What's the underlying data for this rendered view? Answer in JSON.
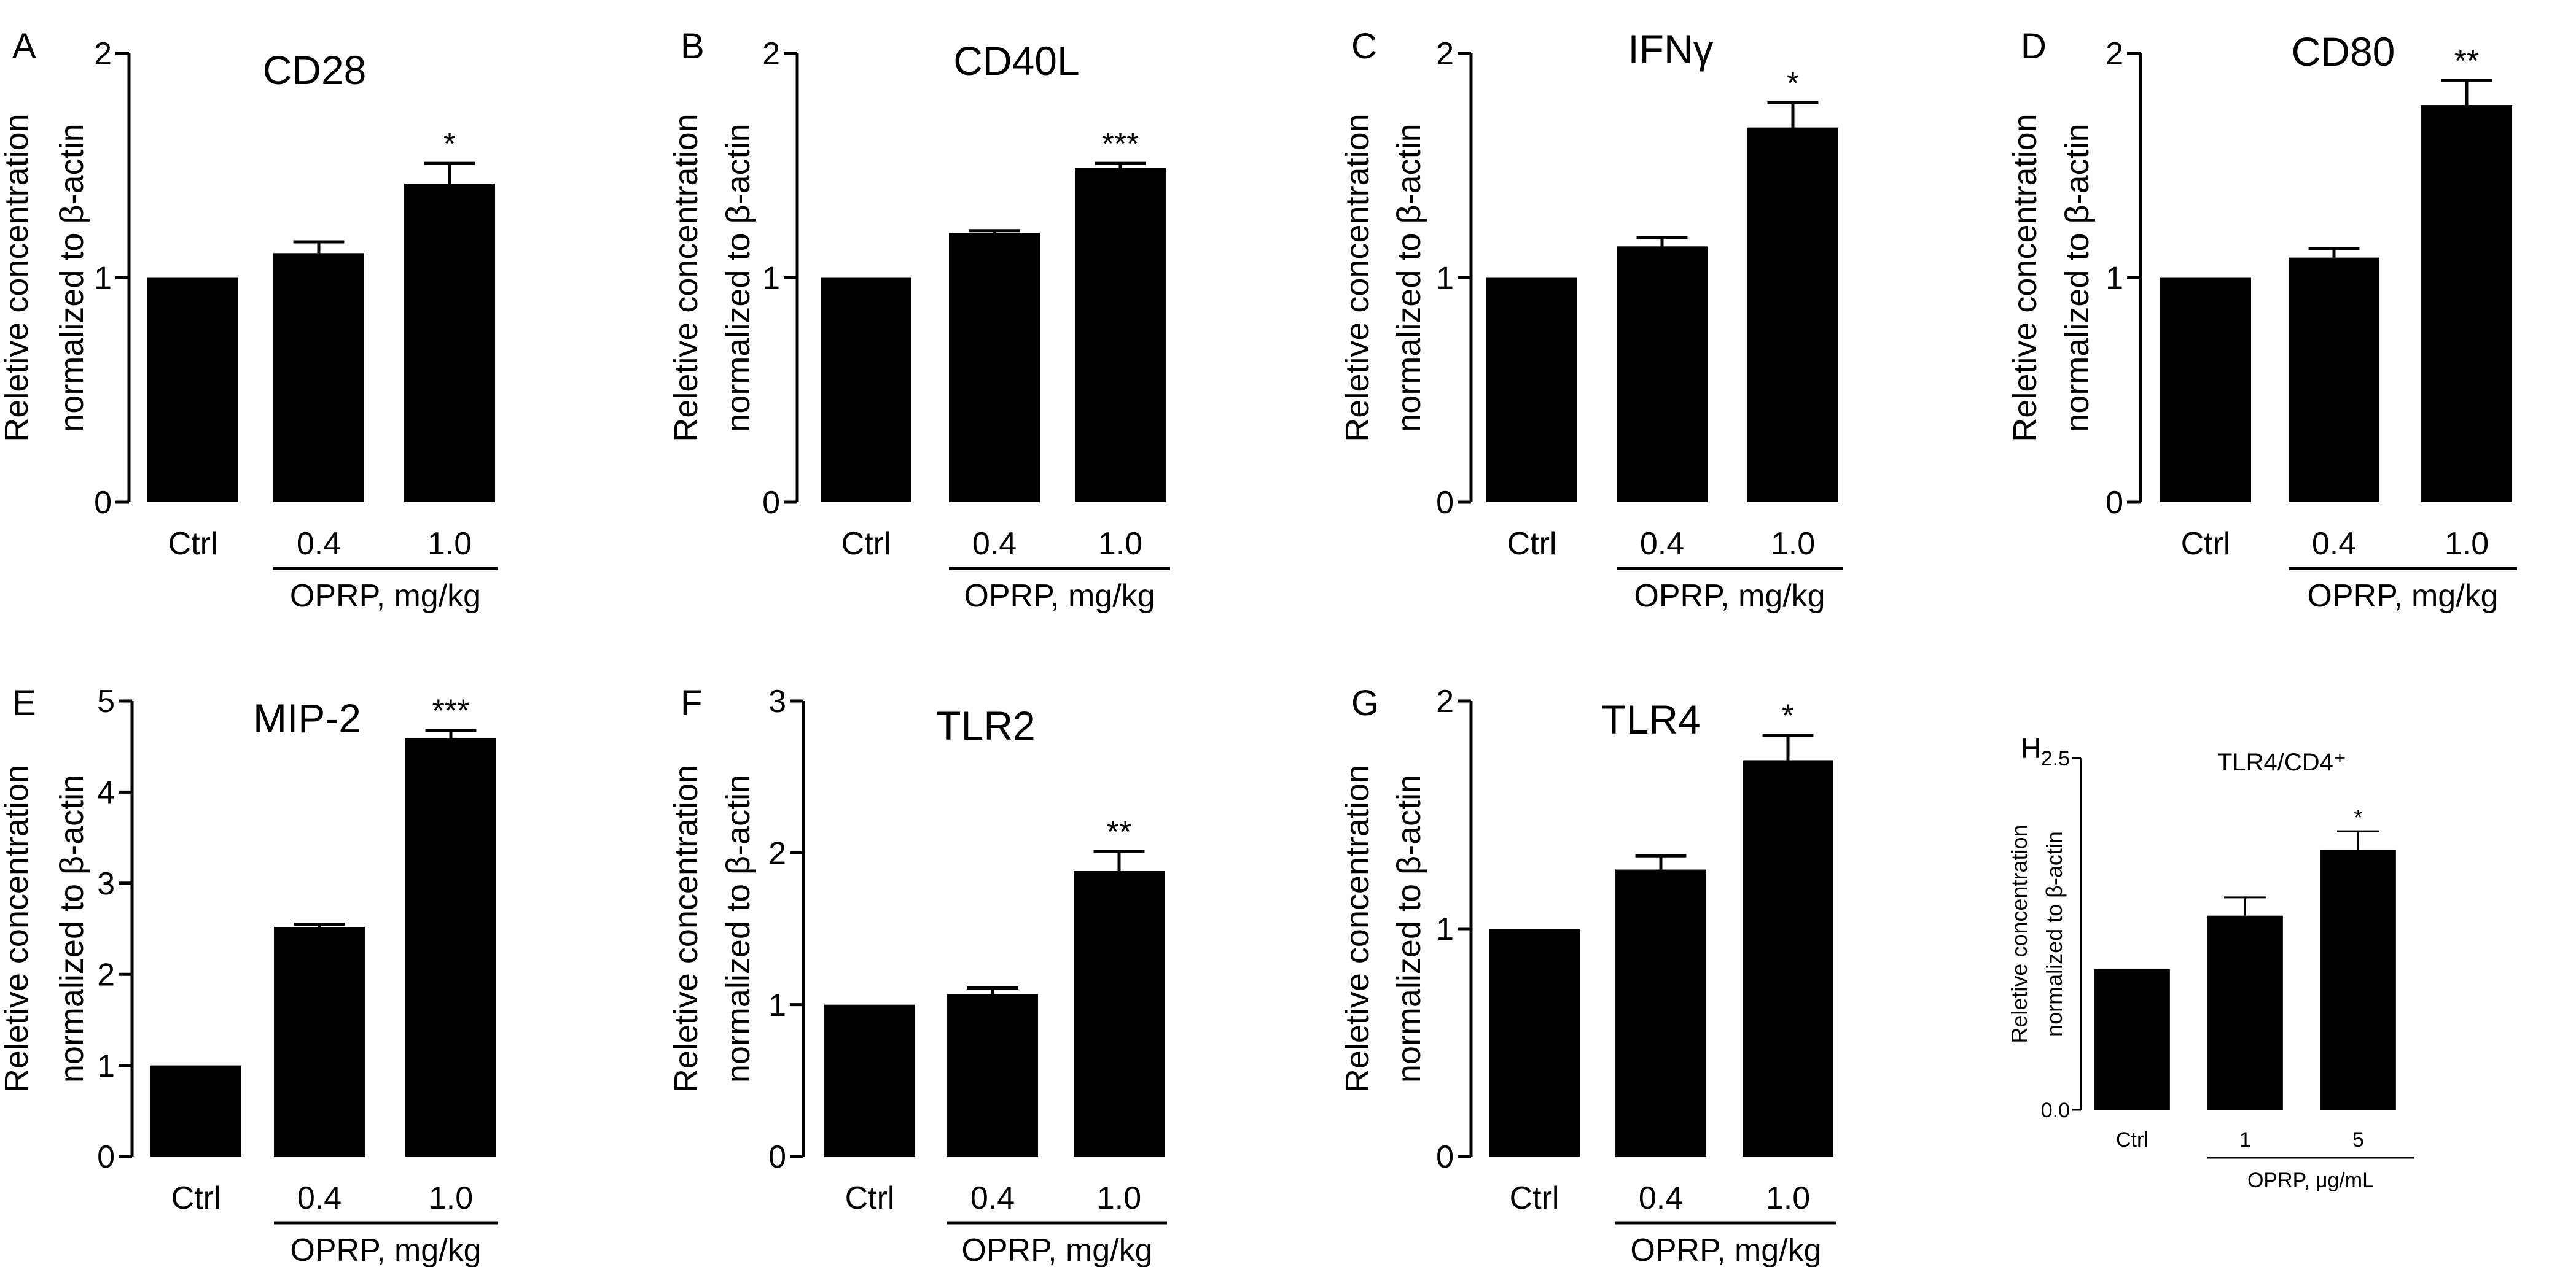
{
  "figure": {
    "colors": {
      "bar": "#000000",
      "axis": "#000000",
      "background": "#ffffff"
    }
  },
  "chart_data": [
    {
      "panel": "A",
      "type": "bar",
      "title": "CD28",
      "ylabel": [
        "Reletive concentration",
        "normalized to β-actin"
      ],
      "categories": [
        "Ctrl",
        "0.4",
        "1.0"
      ],
      "values": [
        1.0,
        1.11,
        1.42
      ],
      "errors": [
        0,
        0.05,
        0.09
      ],
      "significance": [
        "",
        "",
        "*"
      ],
      "ylim": [
        0,
        2
      ],
      "yticks": [
        "0",
        "1",
        "2"
      ],
      "ytick_values": [
        0,
        1,
        2
      ],
      "group_label": "OPRP, mg/kg"
    },
    {
      "panel": "B",
      "type": "bar",
      "title": "CD40L",
      "ylabel": [
        "Reletive concentration",
        "normalized to β-actin"
      ],
      "categories": [
        "Ctrl",
        "0.4",
        "1.0"
      ],
      "values": [
        1.0,
        1.2,
        1.49
      ],
      "errors": [
        0,
        0.01,
        0.02
      ],
      "significance": [
        "",
        "",
        "***"
      ],
      "ylim": [
        0,
        2
      ],
      "yticks": [
        "0",
        "1",
        "2"
      ],
      "ytick_values": [
        0,
        1,
        2
      ],
      "group_label": "OPRP, mg/kg"
    },
    {
      "panel": "C",
      "type": "bar",
      "title": "IFNγ",
      "ylabel": [
        "Reletive concentration",
        "normalized to β-actin"
      ],
      "categories": [
        "Ctrl",
        "0.4",
        "1.0"
      ],
      "values": [
        1.0,
        1.14,
        1.67
      ],
      "errors": [
        0,
        0.04,
        0.11
      ],
      "significance": [
        "",
        "",
        "*"
      ],
      "ylim": [
        0,
        2
      ],
      "yticks": [
        "0",
        "1",
        "2"
      ],
      "ytick_values": [
        0,
        1,
        2
      ],
      "group_label": "OPRP, mg/kg"
    },
    {
      "panel": "D",
      "type": "bar",
      "title": "CD80",
      "ylabel": [
        "Reletive concentration",
        "normalized to β-actin"
      ],
      "categories": [
        "Ctrl",
        "0.4",
        "1.0"
      ],
      "values": [
        1.0,
        1.09,
        1.77
      ],
      "errors": [
        0,
        0.04,
        0.11
      ],
      "significance": [
        "",
        "",
        "**"
      ],
      "ylim": [
        0,
        2
      ],
      "yticks": [
        "0",
        "1",
        "2"
      ],
      "ytick_values": [
        0,
        1,
        2
      ],
      "group_label": "OPRP, mg/kg"
    },
    {
      "panel": "E",
      "type": "bar",
      "title": "MIP-2",
      "ylabel": [
        "Reletive concentration",
        "normalized to β-actin"
      ],
      "categories": [
        "Ctrl",
        "0.4",
        "1.0"
      ],
      "values": [
        1.0,
        2.52,
        4.59
      ],
      "errors": [
        0,
        0.03,
        0.09
      ],
      "significance": [
        "",
        "",
        "***"
      ],
      "ylim": [
        0,
        5
      ],
      "yticks": [
        "0",
        "1",
        "2",
        "3",
        "4",
        "5"
      ],
      "ytick_values": [
        0,
        1,
        2,
        3,
        4,
        5
      ],
      "group_label": "OPRP, mg/kg"
    },
    {
      "panel": "F",
      "type": "bar",
      "title": "TLR2",
      "ylabel": [
        "Reletive concentration",
        "normalized to β-actin"
      ],
      "categories": [
        "Ctrl",
        "0.4",
        "1.0"
      ],
      "values": [
        1.0,
        1.07,
        1.88
      ],
      "errors": [
        0,
        0.04,
        0.13
      ],
      "significance": [
        "",
        "",
        "**"
      ],
      "ylim": [
        0,
        3
      ],
      "yticks": [
        "0",
        "1",
        "2",
        "3"
      ],
      "ytick_values": [
        0,
        1,
        2,
        3
      ],
      "group_label": "OPRP, mg/kg"
    },
    {
      "panel": "G",
      "type": "bar",
      "title": "TLR4",
      "ylabel": [
        "Reletive concentration",
        "normalized to β-actin"
      ],
      "categories": [
        "Ctrl",
        "0.4",
        "1.0"
      ],
      "values": [
        1.0,
        1.26,
        1.74
      ],
      "errors": [
        0,
        0.06,
        0.11
      ],
      "significance": [
        "",
        "",
        "*"
      ],
      "ylim": [
        0,
        2
      ],
      "yticks": [
        "0",
        "1",
        "2"
      ],
      "ytick_values": [
        0,
        1,
        2
      ],
      "group_label": "OPRP, mg/kg"
    },
    {
      "panel": "H",
      "type": "bar",
      "title": "TLR4/CD4⁺",
      "ylabel": [
        "Reletive concentration",
        "normalized to β-actin"
      ],
      "categories": [
        "Ctrl",
        "1",
        "5"
      ],
      "values": [
        1.0,
        1.38,
        1.85
      ],
      "errors": [
        0,
        0.13,
        0.13
      ],
      "significance": [
        "",
        "",
        "*"
      ],
      "ylim": [
        0,
        2.5
      ],
      "yticks": [
        "0.0",
        "2.5"
      ],
      "ytick_values": [
        0,
        2.5
      ],
      "group_label": "OPRP, μg/mL"
    }
  ]
}
